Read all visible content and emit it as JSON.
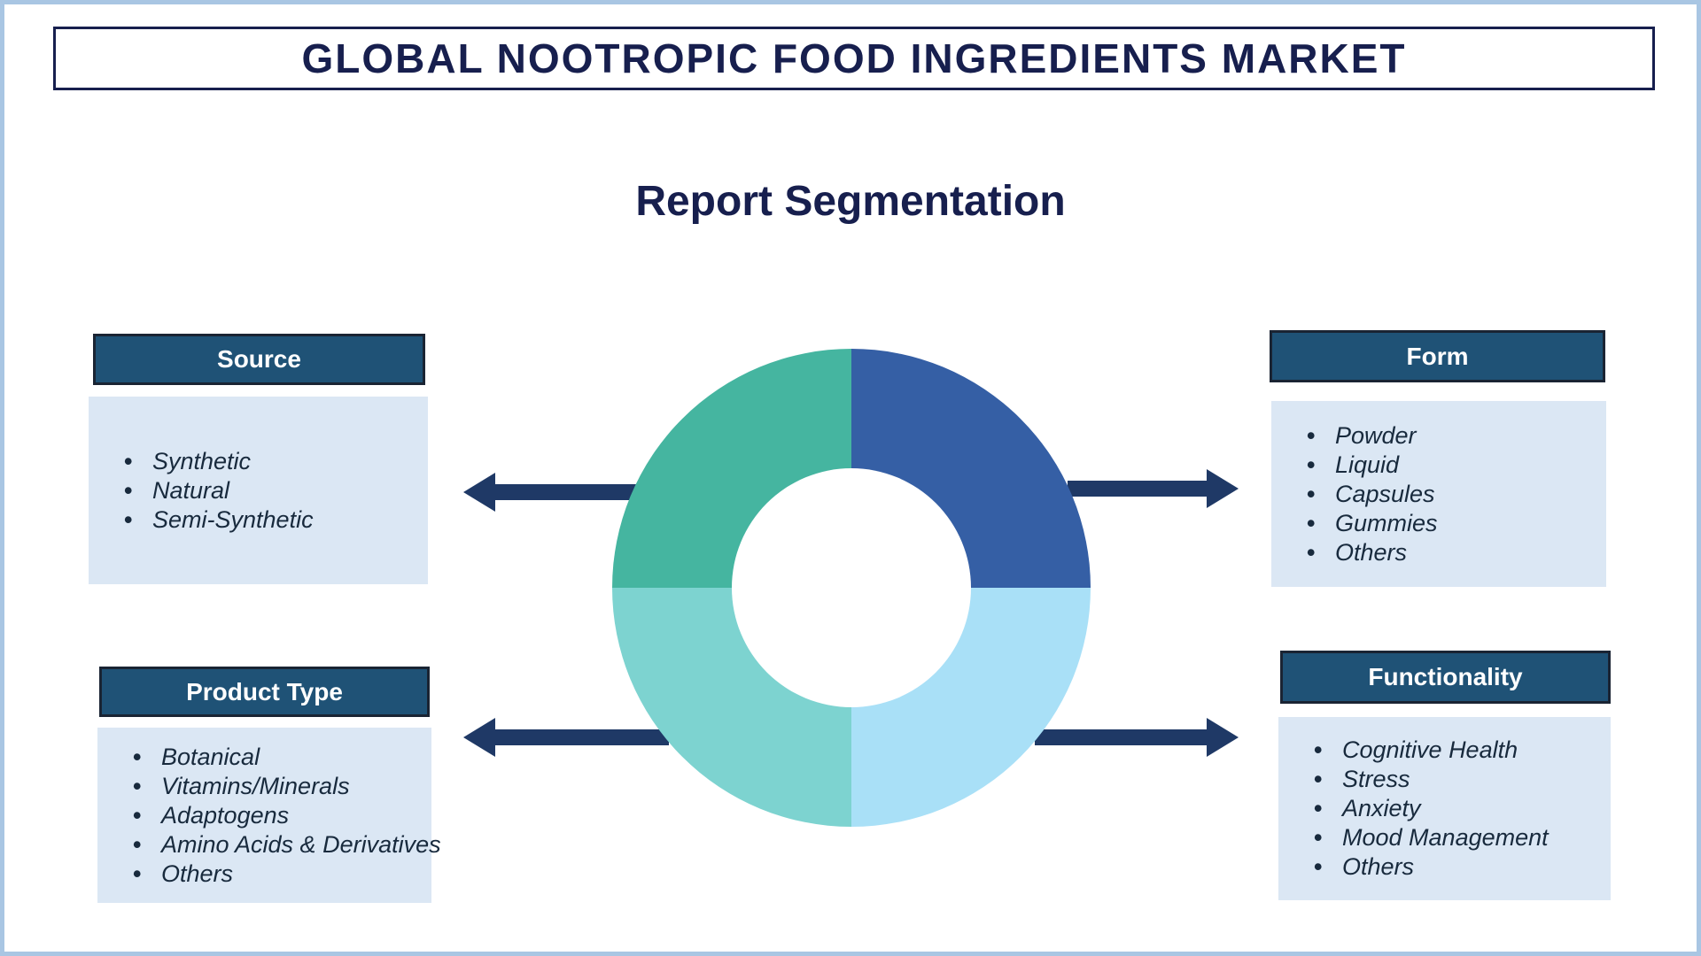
{
  "title": "GLOBAL NOOTROPIC FOOD INGREDIENTS MARKET",
  "subtitle": "Report Segmentation",
  "segments": {
    "source": {
      "label": "Source",
      "items": [
        "Synthetic",
        "Natural",
        "Semi-Synthetic"
      ]
    },
    "product_type": {
      "label": "Product Type",
      "items": [
        "Botanical",
        "Vitamins/Minerals",
        "Adaptogens",
        "Amino Acids & Derivatives",
        "Others"
      ]
    },
    "form": {
      "label": "Form",
      "items": [
        "Powder",
        "Liquid",
        "Capsules",
        "Gummies",
        "Others"
      ]
    },
    "functionality": {
      "label": "Functionality",
      "items": [
        "Cognitive Health",
        "Stress",
        "Anxiety",
        "Mood Management",
        "Others"
      ]
    }
  },
  "chart_data": {
    "type": "pie",
    "subtype": "donut",
    "title": "Report Segmentation",
    "labels": [
      "Form (top-right)",
      "Functionality (bottom-right)",
      "Product Type (bottom-left)",
      "Source (top-left)"
    ],
    "values": [
      25,
      25,
      25,
      25
    ],
    "colors": [
      "#355fa5",
      "#a9e0f7",
      "#7dd3d0",
      "#45b5a0"
    ],
    "legend": "none",
    "inner_radius_ratio": 0.5
  },
  "colors": {
    "title-navy": "#171f4e",
    "header-bg": "#1f5276",
    "header-border": "#1a2433",
    "panel-bg": "#dbe7f4",
    "list-text": "#182a3d",
    "arrow-navy": "#1f3966",
    "frame": "#a9c6e3",
    "seg-tr": "#355fa5",
    "seg-br": "#a9e0f7",
    "seg-bl": "#7dd3d0",
    "seg-tl": "#45b5a0"
  }
}
